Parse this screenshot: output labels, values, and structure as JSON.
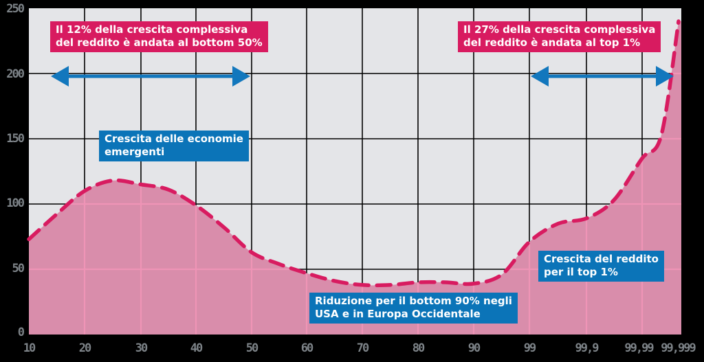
{
  "chart_data": {
    "type": "area",
    "title": "",
    "xlabel": "",
    "ylabel": "",
    "ylim": [
      0,
      250
    ],
    "yticks": [
      "0",
      "50",
      "100",
      "150",
      "200",
      "250"
    ],
    "xtick_labels": [
      "10",
      "20",
      "30",
      "40",
      "50",
      "60",
      "70",
      "80",
      "90",
      "99",
      "99,9",
      "99,99",
      "99,999"
    ],
    "x": [
      "10",
      "15",
      "20",
      "25",
      "30",
      "35",
      "40",
      "45",
      "50",
      "55",
      "60",
      "65",
      "70",
      "75",
      "80",
      "85",
      "90",
      "95",
      "99",
      "99,5",
      "99,9",
      "99,95",
      "99,99",
      "99,995",
      "99,999"
    ],
    "series": [
      {
        "name": "Crescita del reddito",
        "values": [
          73,
          92,
          110,
          118,
          115,
          111,
          99,
          82,
          63,
          54,
          47,
          41,
          38,
          38,
          40,
          40,
          39,
          46,
          71,
          85,
          89,
          103,
          135,
          153,
          240
        ]
      }
    ],
    "grid": true,
    "annotations": [
      "Il 12% della crescita complessiva del reddito è andata al bottom 50%",
      "Il 27% della crescita complessiva del reddito è andata al top 1%",
      "Crescita delle economie emergenti",
      "Riduzione per il bottom 90% negli USA e in Europa Occidentale",
      "Crescita del reddito per il top 1%"
    ],
    "colors": {
      "fill": "#d98dab",
      "line": "#d81b60",
      "arrow": "#1277bd",
      "plot_bg": "#e4e5e8",
      "page_bg": "#000000",
      "tick_text": "#7d8388"
    }
  },
  "annotations": {
    "top_left": "Il 12% della crescita complessiva\ndel reddito è andata al bottom 50%",
    "top_right": "Il 27% della crescita complessiva\ndel reddito è andata al top 1%",
    "emerging": "Crescita delle economie\nemergenti",
    "bottom90": "Riduzione per il bottom 90% negli\nUSA e in Europa Occidentale",
    "top1": "Crescita del reddito\nper il top 1%"
  },
  "axes": {
    "y": [
      "250",
      "200",
      "150",
      "100",
      "50",
      "0"
    ],
    "x": [
      "10",
      "20",
      "30",
      "40",
      "50",
      "60",
      "70",
      "80",
      "90",
      "99",
      "99,9",
      "99,99",
      "99,999"
    ]
  }
}
